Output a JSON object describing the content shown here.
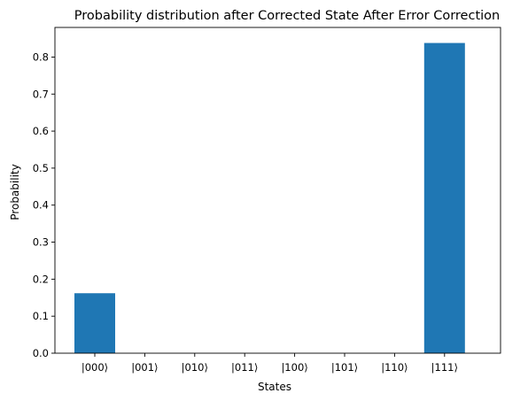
{
  "chart_data": {
    "type": "bar",
    "title": "Probability distribution after Corrected State After Error Correction",
    "xlabel": "States",
    "ylabel": "Probability",
    "categories": [
      "|000⟩",
      "|001⟩",
      "|010⟩",
      "|011⟩",
      "|100⟩",
      "|101⟩",
      "|110⟩",
      "|111⟩"
    ],
    "values": [
      0.162,
      0,
      0,
      0,
      0,
      0,
      0,
      0.838
    ],
    "ylim": [
      0,
      0.88
    ],
    "yticks": [
      0.0,
      0.1,
      0.2,
      0.3,
      0.4,
      0.5,
      0.6,
      0.7,
      0.8
    ],
    "ytick_labels": [
      "0.0",
      "0.1",
      "0.2",
      "0.3",
      "0.4",
      "0.5",
      "0.6",
      "0.7",
      "0.8"
    ],
    "grid": false,
    "bar_color": "#1f77b4"
  }
}
